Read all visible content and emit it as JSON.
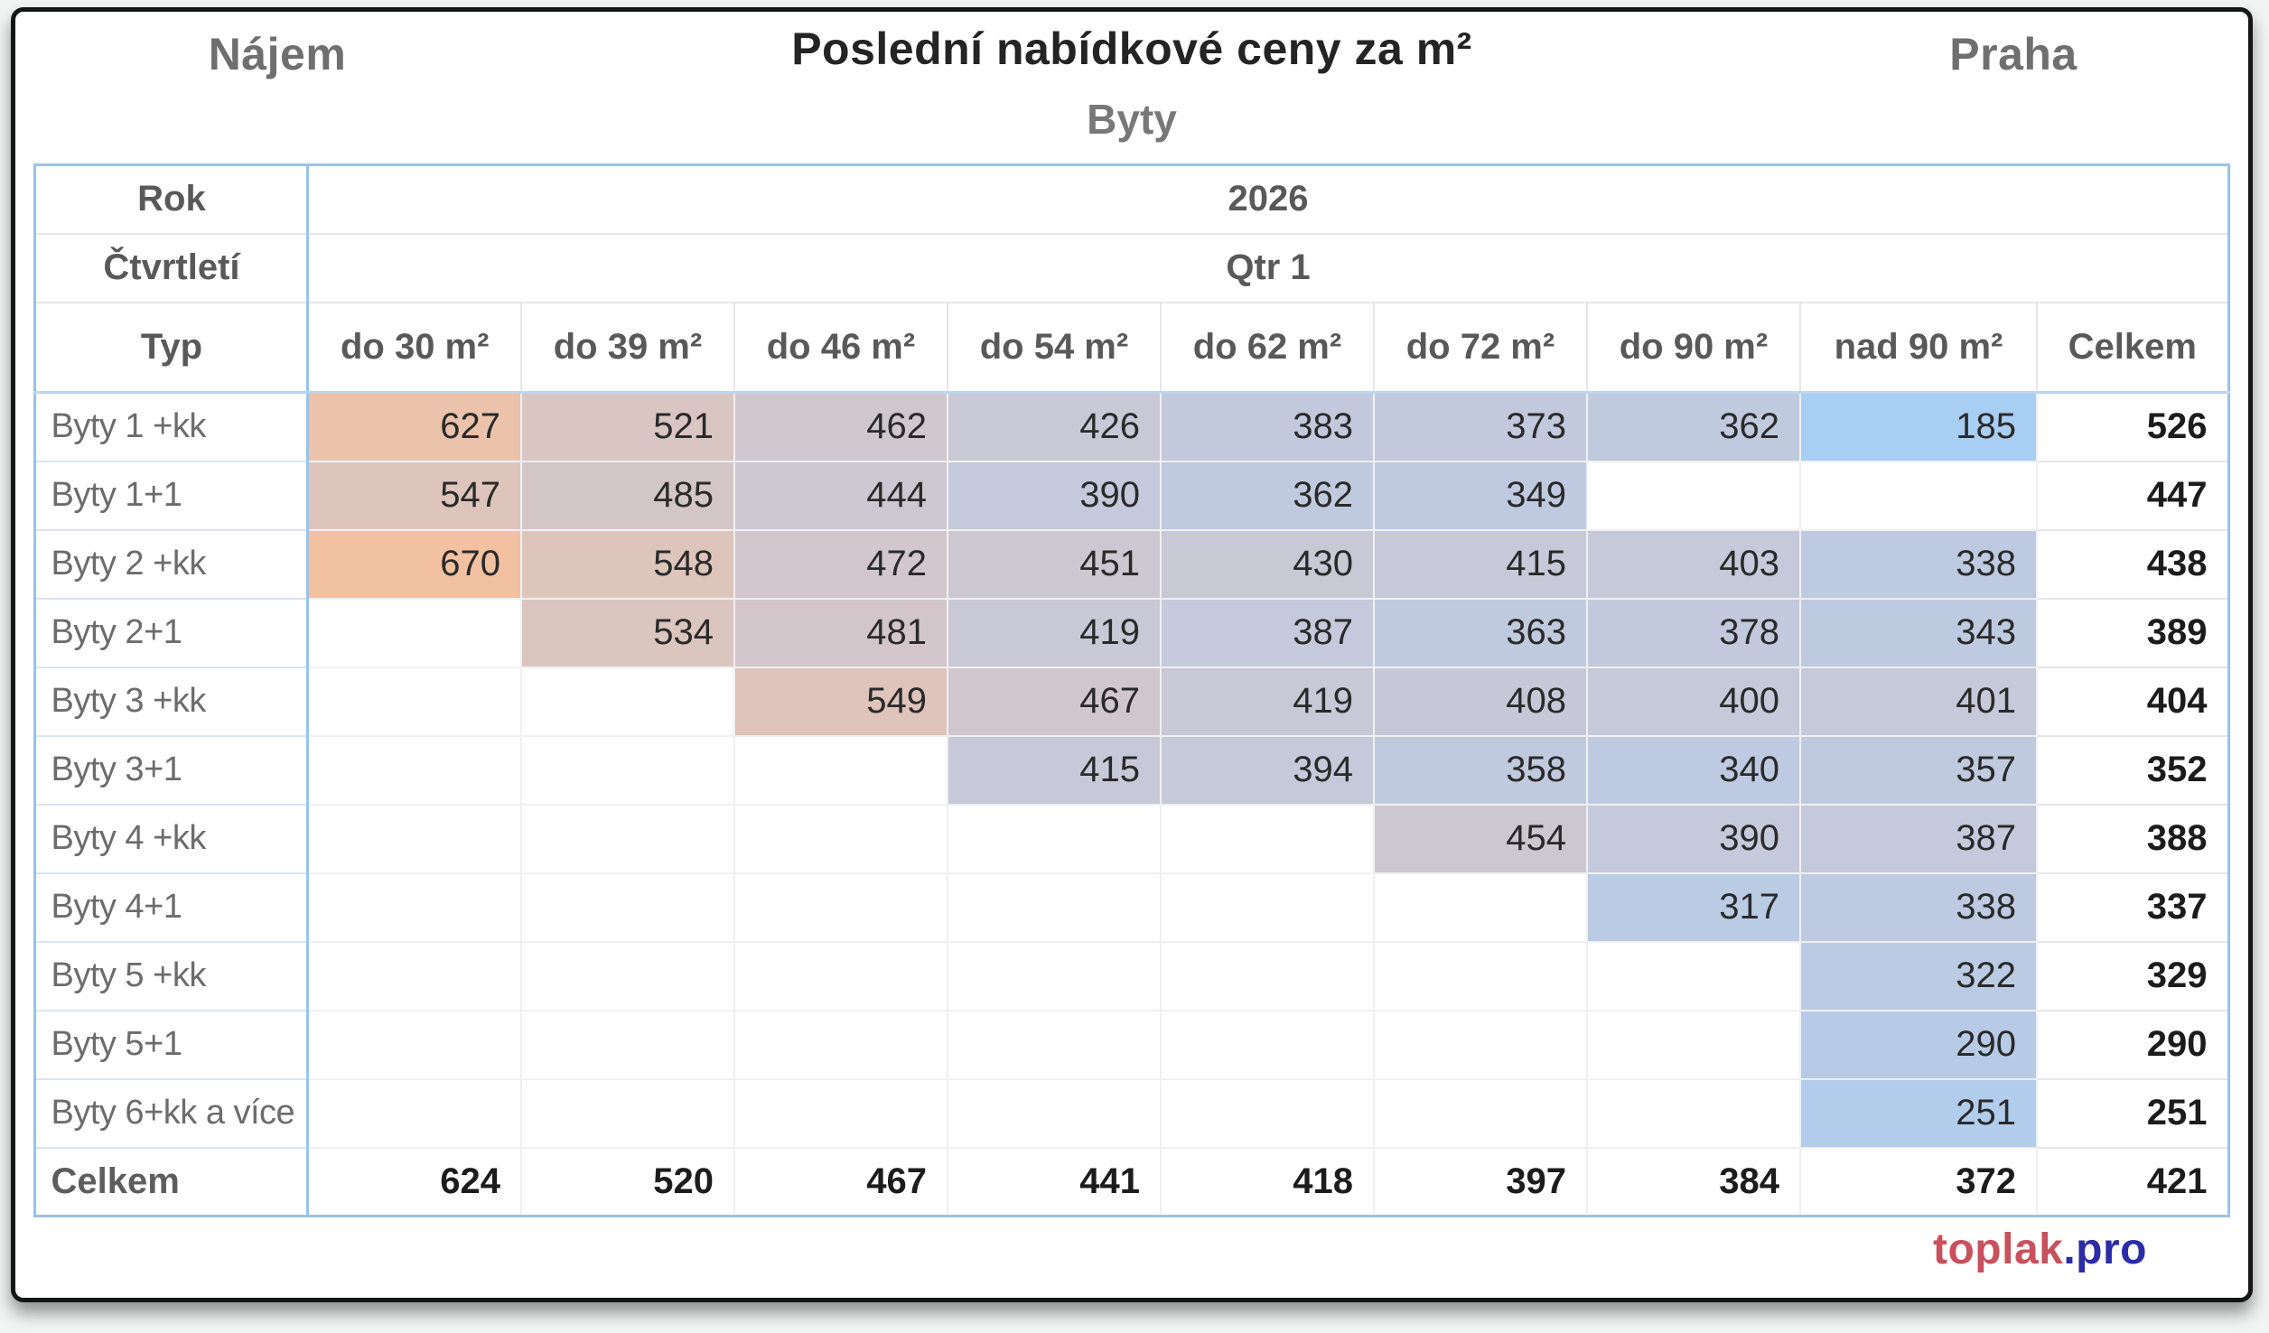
{
  "footer": {
    "brand_red": "toplak",
    "brand_blue": ".pro"
  },
  "heatmap": {
    "min_value": 185,
    "mid_value": 427.5,
    "max_value": 670,
    "min_color": "#a9cef4",
    "mid_color": "#c9c8d6",
    "max_color": "#f2c1a1"
  },
  "colors": {
    "table_border": "#9cc2e5",
    "frame": "#161616",
    "header_text": "#595959",
    "label_text": "#6c6c6c",
    "value_text": "#2a2a2a",
    "brand_red": "#c9505d",
    "brand_blue": "#2b2ca6"
  },
  "chart_data": {
    "type": "heatmap",
    "title": "Poslední nabídkové ceny za m²",
    "subtitle": "Byty",
    "section": "Nájem",
    "region": "Praha",
    "year_label": "Rok",
    "year": "2026",
    "quarter_label": "Čtvrtletí",
    "quarter": "Qtr 1",
    "row_header": "Typ",
    "columns": [
      "do 30 m²",
      "do 39 m²",
      "do 46 m²",
      "do 54 m²",
      "do 62 m²",
      "do 72 m²",
      "do 90 m²",
      "nad 90 m²"
    ],
    "total_column": "Celkem",
    "rows": [
      {
        "label": "Byty 1 +kk",
        "values": [
          627,
          521,
          462,
          426,
          383,
          373,
          362,
          185
        ],
        "total": 526
      },
      {
        "label": "Byty 1+1",
        "values": [
          547,
          485,
          444,
          390,
          362,
          349,
          null,
          null
        ],
        "total": 447
      },
      {
        "label": "Byty 2 +kk",
        "values": [
          670,
          548,
          472,
          451,
          430,
          415,
          403,
          338
        ],
        "total": 438
      },
      {
        "label": "Byty 2+1",
        "values": [
          null,
          534,
          481,
          419,
          387,
          363,
          378,
          343
        ],
        "total": 389
      },
      {
        "label": "Byty 3 +kk",
        "values": [
          null,
          null,
          549,
          467,
          419,
          408,
          400,
          401
        ],
        "total": 404
      },
      {
        "label": "Byty 3+1",
        "values": [
          null,
          null,
          null,
          415,
          394,
          358,
          340,
          357
        ],
        "total": 352
      },
      {
        "label": "Byty 4 +kk",
        "values": [
          null,
          null,
          null,
          null,
          null,
          454,
          390,
          387
        ],
        "total": 388
      },
      {
        "label": "Byty 4+1",
        "values": [
          null,
          null,
          null,
          null,
          null,
          null,
          317,
          338
        ],
        "total": 337
      },
      {
        "label": "Byty 5 +kk",
        "values": [
          null,
          null,
          null,
          null,
          null,
          null,
          null,
          322
        ],
        "total": 329
      },
      {
        "label": "Byty 5+1",
        "values": [
          null,
          null,
          null,
          null,
          null,
          null,
          null,
          290
        ],
        "total": 290
      },
      {
        "label": "Byty 6+kk a více",
        "values": [
          null,
          null,
          null,
          null,
          null,
          null,
          null,
          251
        ],
        "total": 251
      }
    ],
    "totals_row": {
      "label": "Celkem",
      "values": [
        624,
        520,
        467,
        441,
        418,
        397,
        384,
        372
      ],
      "total": 421
    },
    "legend_position": "none",
    "grid": true
  }
}
